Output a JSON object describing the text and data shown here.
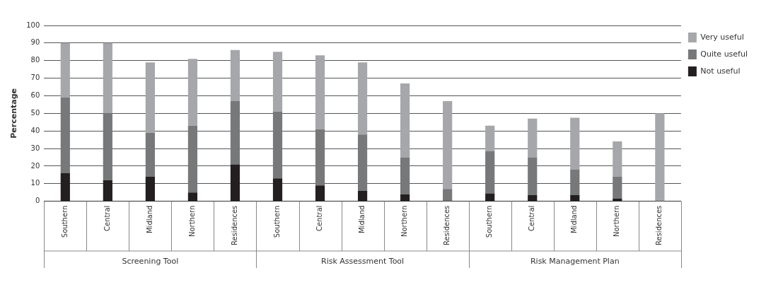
{
  "chart_data": {
    "type": "bar",
    "stacked": true,
    "ylabel": "Percentage",
    "categories": [
      "Southern",
      "Central",
      "Midland",
      "Northern",
      "Residences",
      "Southern",
      "Central",
      "Midland",
      "Northern",
      "Residences",
      "Southern",
      "Central",
      "Midland",
      "Northern",
      "Residences"
    ],
    "series": [
      {
        "name": "Not useful",
        "color": "#231f20",
        "values": [
          16,
          12,
          14,
          5,
          21,
          13,
          9,
          6,
          4,
          0,
          4.5,
          3.5,
          3.5,
          1.5,
          0
        ]
      },
      {
        "name": "Quite useful",
        "color": "#77787a",
        "values": [
          43,
          38,
          25,
          38,
          36,
          38,
          32,
          32,
          21,
          7,
          24,
          21.5,
          14.5,
          12.5,
          0
        ]
      },
      {
        "name": "Very useful",
        "color": "#a6a7aa",
        "values": [
          31,
          40,
          40,
          38,
          29,
          34,
          42,
          41,
          42,
          50,
          14.5,
          22,
          29.5,
          20,
          50
        ]
      }
    ],
    "ylim": [
      0,
      100
    ],
    "yticks": [
      0,
      10,
      20,
      30,
      40,
      50,
      60,
      70,
      80,
      90,
      100
    ],
    "grid": "y",
    "legend": "top right",
    "annotations": [
      "Screening Tool",
      "Risk Assessment Tool",
      "Risk Management Plan"
    ]
  }
}
